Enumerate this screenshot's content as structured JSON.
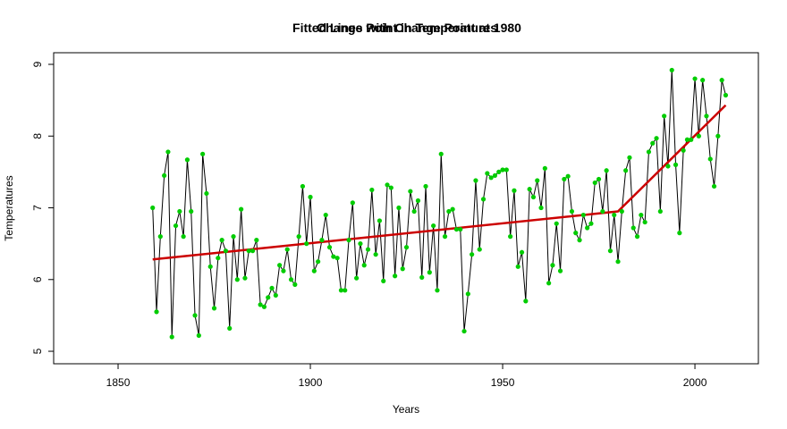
{
  "chart_data": {
    "type": "line",
    "titles": [
      "Change Point in Temperatures",
      "Fitted Lines with Change Point at 1980"
    ],
    "xlabel": "Years",
    "ylabel": "Temperatures",
    "x": [
      1859,
      1860,
      1861,
      1862,
      1863,
      1864,
      1865,
      1866,
      1867,
      1868,
      1869,
      1870,
      1871,
      1872,
      1873,
      1874,
      1875,
      1876,
      1877,
      1878,
      1879,
      1880,
      1881,
      1882,
      1883,
      1884,
      1885,
      1886,
      1887,
      1888,
      1889,
      1890,
      1891,
      1892,
      1893,
      1894,
      1895,
      1896,
      1897,
      1898,
      1899,
      1900,
      1901,
      1902,
      1903,
      1904,
      1905,
      1906,
      1907,
      1908,
      1909,
      1910,
      1911,
      1912,
      1913,
      1914,
      1915,
      1916,
      1917,
      1918,
      1919,
      1920,
      1921,
      1922,
      1923,
      1924,
      1925,
      1926,
      1927,
      1928,
      1929,
      1930,
      1931,
      1932,
      1933,
      1934,
      1935,
      1936,
      1937,
      1938,
      1939,
      1940,
      1941,
      1942,
      1943,
      1944,
      1945,
      1946,
      1947,
      1948,
      1949,
      1950,
      1951,
      1952,
      1953,
      1954,
      1955,
      1956,
      1957,
      1958,
      1959,
      1960,
      1961,
      1962,
      1963,
      1964,
      1965,
      1966,
      1967,
      1968,
      1969,
      1970,
      1971,
      1972,
      1973,
      1974,
      1975,
      1976,
      1977,
      1978,
      1979,
      1980,
      1981,
      1982,
      1983,
      1984,
      1985,
      1986,
      1987,
      1988,
      1989,
      1990,
      1991,
      1992,
      1993,
      1994,
      1995,
      1996,
      1997,
      1998,
      1999,
      2000,
      2001,
      2002,
      2003,
      2004,
      2005,
      2006,
      2007,
      2008
    ],
    "values": [
      7.0,
      5.55,
      6.6,
      7.45,
      7.78,
      5.2,
      6.75,
      6.95,
      6.6,
      7.67,
      6.95,
      5.5,
      5.22,
      7.75,
      7.2,
      6.18,
      5.6,
      6.3,
      6.55,
      6.4,
      5.32,
      6.6,
      6.0,
      6.98,
      6.02,
      6.4,
      6.4,
      6.55,
      5.65,
      5.62,
      5.75,
      5.88,
      5.78,
      6.2,
      6.12,
      6.42,
      6.0,
      5.93,
      6.6,
      7.3,
      6.5,
      7.15,
      6.12,
      6.25,
      6.55,
      6.9,
      6.45,
      6.32,
      6.3,
      5.85,
      5.85,
      6.55,
      7.07,
      6.02,
      6.5,
      6.2,
      6.42,
      7.25,
      6.35,
      6.82,
      5.98,
      7.32,
      7.28,
      6.05,
      7.0,
      6.15,
      6.45,
      7.23,
      6.95,
      7.1,
      6.03,
      7.3,
      6.1,
      6.75,
      5.85,
      7.75,
      6.6,
      6.95,
      6.98,
      6.7,
      6.7,
      5.28,
      5.8,
      6.35,
      7.38,
      6.42,
      7.12,
      7.48,
      7.42,
      7.45,
      7.5,
      7.53,
      7.53,
      6.6,
      7.24,
      6.18,
      6.38,
      5.7,
      7.26,
      7.15,
      7.38,
      7.0,
      7.55,
      5.95,
      6.2,
      6.78,
      6.12,
      7.4,
      7.44,
      6.95,
      6.65,
      6.55,
      6.9,
      6.72,
      6.78,
      7.35,
      7.4,
      6.95,
      7.52,
      6.4,
      6.9,
      6.25,
      6.95,
      7.52,
      7.7,
      6.72,
      6.6,
      6.9,
      6.8,
      7.78,
      7.9,
      7.97,
      6.95,
      8.28,
      7.58,
      8.92,
      7.6,
      6.65,
      7.8,
      7.95,
      7.95,
      8.8,
      8.0,
      8.78,
      8.28,
      7.68,
      7.3,
      8.0,
      8.78,
      8.57
    ],
    "line_color": "#000000",
    "point_color": "#00cc00",
    "fit": {
      "x": [
        1859,
        1980,
        2008
      ],
      "values": [
        6.28,
        6.95,
        8.43
      ],
      "color": "#cc0000"
    },
    "xlim": [
      1833.25,
      2016.5
    ],
    "ylim": [
      4.826,
      9.162
    ],
    "xticks": [
      1850,
      1900,
      1950,
      2000
    ],
    "yticks": [
      5,
      6,
      7,
      8,
      9
    ]
  }
}
